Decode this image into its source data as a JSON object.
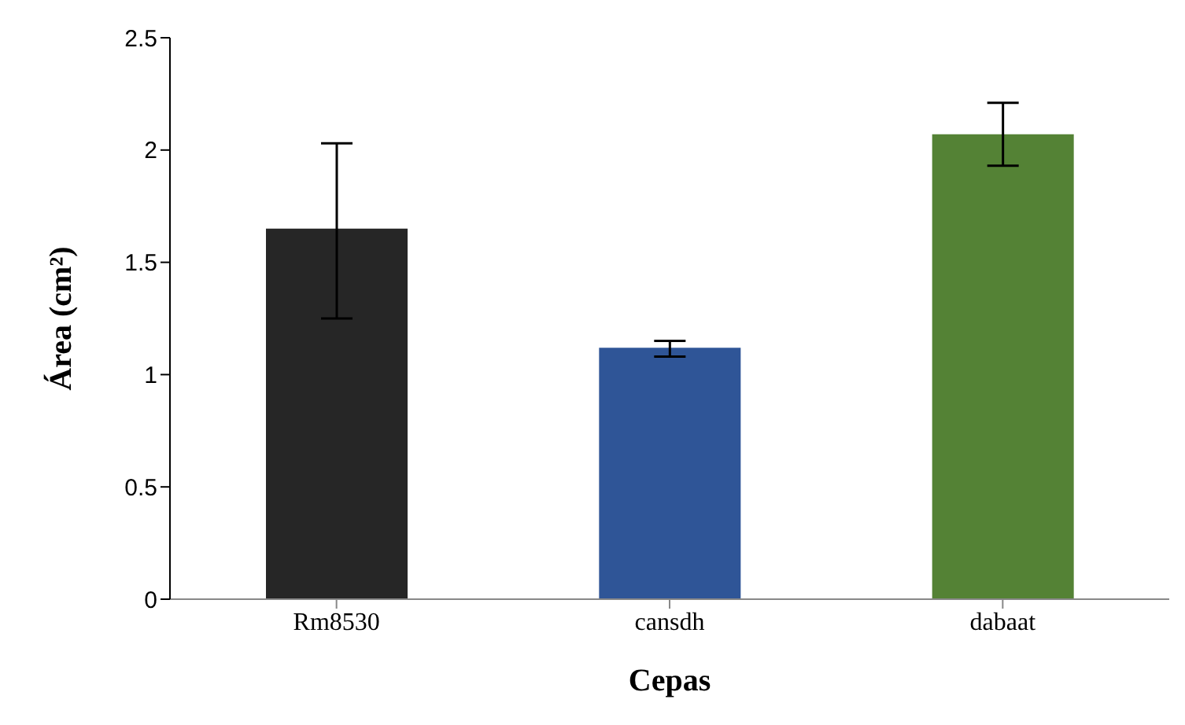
{
  "chart_data": {
    "type": "bar",
    "xlabel": "Cepas",
    "ylabel": "Área (cm²)",
    "categories": [
      "Rm8530",
      "cansdh",
      "dabaat"
    ],
    "values": [
      1.65,
      1.12,
      2.07
    ],
    "colors": [
      "#262626",
      "#2f5597",
      "#548235"
    ],
    "errors": [
      [
        1.25,
        2.03
      ],
      [
        1.08,
        1.15
      ],
      [
        1.93,
        2.21
      ]
    ],
    "ylim": [
      0,
      2.5
    ],
    "yticks": [
      0,
      0.5,
      1,
      1.5,
      2,
      2.5
    ],
    "grid": false,
    "legend": false
  }
}
